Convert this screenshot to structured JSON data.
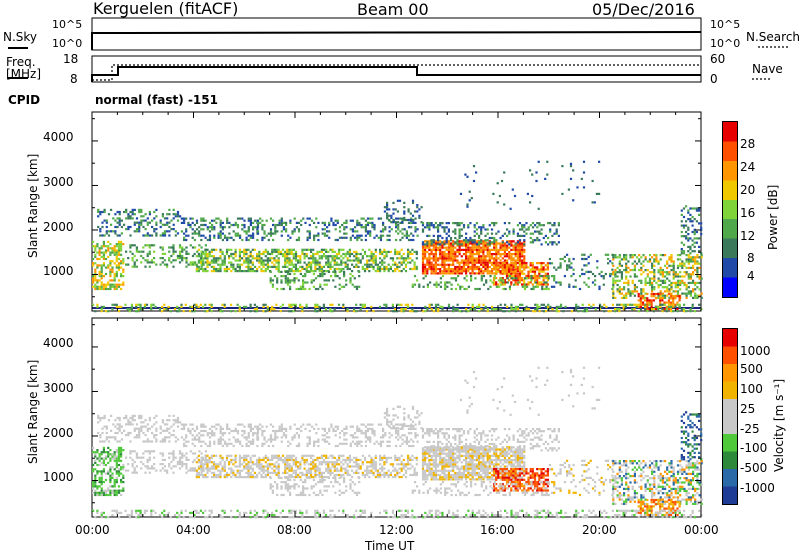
{
  "header": {
    "station": "Kerguelen (fitACF)",
    "beam": "Beam 00",
    "date": "05/Dec/2016"
  },
  "panels": {
    "nsky_label": "N.Sky",
    "nsky_ticks": [
      "10^5",
      "10^0"
    ],
    "nsearch_label": "N.Search",
    "nsearch_ticks": [
      "10^5",
      "10^0"
    ],
    "freq_label": "Freq.",
    "freq_unit": "[MHz]",
    "freq_ticks": [
      "18",
      "8"
    ],
    "nave_label": "Nave",
    "nave_ticks": [
      "60",
      "0"
    ],
    "cpid_label": "CPID",
    "cpid_value": "normal (fast) -151"
  },
  "colors": {
    "power_scale": [
      "#0000ff",
      "#1f4aa8",
      "#3a7a5a",
      "#4fa84a",
      "#7fd43a",
      "#f0c800",
      "#ff9600",
      "#ff5000",
      "#e60000"
    ],
    "velocity_scale": [
      "#e60000",
      "#ff5000",
      "#ff9600",
      "#f0b400",
      "#c8c8c8",
      "#c8c8c8",
      "#4fc83a",
      "#2e8a3a",
      "#2a6aa8",
      "#1e3c96"
    ]
  },
  "chart_data": [
    {
      "type": "heatmap",
      "name": "power",
      "ylabel": "Slant Range [km]",
      "xlabel": "Time UT",
      "x_ticks": [
        "00:00",
        "04:00",
        "08:00",
        "12:00",
        "16:00",
        "20:00",
        "00:00"
      ],
      "y_ticks": [
        "1000",
        "2000",
        "3000",
        "4000"
      ],
      "ylim": [
        180,
        4650
      ],
      "colorbar": {
        "label": "Power [dB]",
        "ticks": [
          "28",
          "24",
          "20",
          "16",
          "12",
          "8",
          "4"
        ],
        "range": [
          0,
          30
        ]
      }
    },
    {
      "type": "heatmap",
      "name": "velocity",
      "ylabel": "Slant Range [km]",
      "xlabel": "Time UT",
      "x_ticks": [
        "00:00",
        "04:00",
        "08:00",
        "12:00",
        "16:00",
        "20:00",
        "00:00"
      ],
      "y_ticks": [
        "1000",
        "2000",
        "3000",
        "4000"
      ],
      "ylim": [
        180,
        4650
      ],
      "colorbar": {
        "label": "Velocity [m s⁻¹]",
        "ticks": [
          "1000",
          "500",
          "100",
          "25",
          "-25",
          "-100",
          "-500",
          "-1000"
        ]
      }
    }
  ]
}
